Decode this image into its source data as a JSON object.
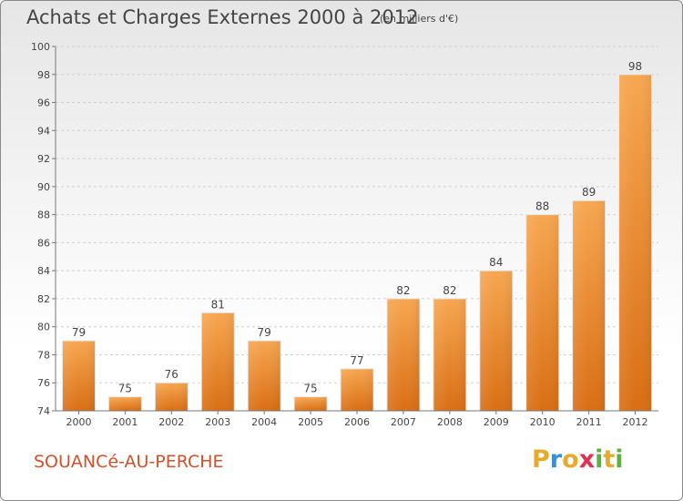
{
  "chart_data": {
    "type": "bar",
    "title": "Achats et Charges Externes 2000 à 2012",
    "unit": "(en milliers d'€)",
    "categories": [
      "2000",
      "2001",
      "2002",
      "2003",
      "2004",
      "2005",
      "2006",
      "2007",
      "2008",
      "2009",
      "2010",
      "2011",
      "2012"
    ],
    "values": [
      79,
      75,
      76,
      81,
      79,
      75,
      77,
      82,
      82,
      84,
      88,
      89,
      98
    ],
    "ylim": [
      74,
      100
    ],
    "yticks": [
      74,
      76,
      78,
      80,
      82,
      84,
      86,
      88,
      90,
      92,
      94,
      96,
      98,
      100
    ],
    "grid": true,
    "bar_color": "#f0902f"
  },
  "commune": "SOUANCé-AU-PERCHE",
  "logo": {
    "text": "Proxiti",
    "letters": [
      {
        "ch": "P",
        "color": "#e9a92a"
      },
      {
        "ch": "r",
        "color": "#3c8fd0"
      },
      {
        "ch": "o",
        "color": "#e9a92a"
      },
      {
        "ch": "x",
        "color": "#e2304f"
      },
      {
        "ch": "i",
        "color": "#5ab240"
      },
      {
        "ch": "t",
        "color": "#e9a92a"
      },
      {
        "ch": "i",
        "color": "#5ab240"
      }
    ]
  }
}
